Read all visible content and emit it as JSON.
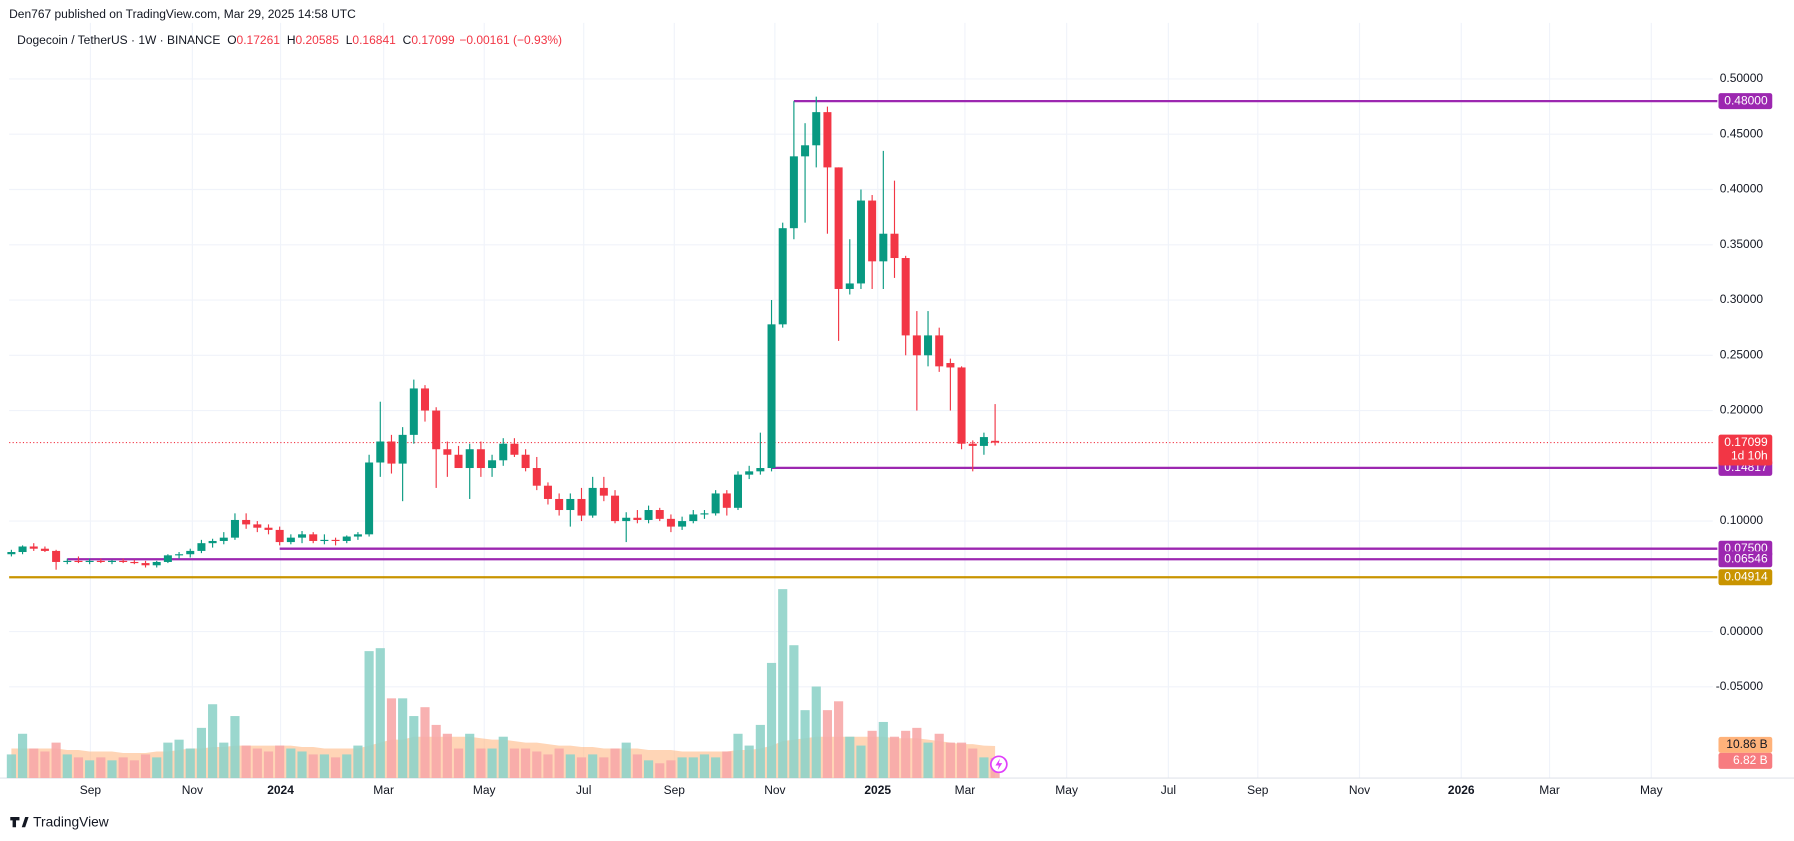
{
  "header": {
    "published": "Den767 published on TradingView.com, Mar 29, 2025 14:58 UTC",
    "brand": "TradingView"
  },
  "chart_data": {
    "type": "candlestick",
    "symbol": "Dogecoin / TetherUS · 1W · BINANCE",
    "legend_keys": [
      "O",
      "H",
      "L",
      "C"
    ],
    "change": "−0.00161 (−0.93%)",
    "up_color": "#089981",
    "down_color": "#f23645",
    "x": [
      0,
      1,
      2,
      3,
      4,
      5,
      6,
      7,
      8,
      9,
      10,
      11,
      12,
      13,
      14,
      15,
      16,
      17,
      18,
      19,
      20,
      21,
      22,
      23,
      24,
      25,
      26,
      27,
      28,
      29,
      30,
      31,
      32,
      33,
      34,
      35,
      36,
      37,
      38,
      39,
      40,
      41,
      42,
      43,
      44,
      45,
      46,
      47,
      48,
      49,
      50,
      51,
      52,
      53,
      54,
      55,
      56,
      57,
      58,
      59,
      60,
      61,
      62,
      63,
      64,
      65,
      66,
      67,
      68,
      69,
      70,
      71,
      72,
      73,
      74,
      75,
      76,
      77,
      78,
      79,
      80,
      81,
      82,
      83,
      84,
      85,
      86,
      87,
      88
    ],
    "open": [
      0.07,
      0.072,
      0.077,
      0.075,
      0.073,
      0.063,
      0.064,
      0.063,
      0.064,
      0.063,
      0.064,
      0.063,
      0.062,
      0.06,
      0.063,
      0.069,
      0.07,
      0.073,
      0.08,
      0.082,
      0.085,
      0.101,
      0.097,
      0.094,
      0.092,
      0.081,
      0.085,
      0.088,
      0.082,
      0.083,
      0.082,
      0.086,
      0.088,
      0.153,
      0.172,
      0.152,
      0.178,
      0.22,
      0.2,
      0.165,
      0.16,
      0.148,
      0.165,
      0.148,
      0.155,
      0.17,
      0.16,
      0.148,
      0.132,
      0.12,
      0.11,
      0.12,
      0.105,
      0.13,
      0.123,
      0.1,
      0.103,
      0.101,
      0.11,
      0.102,
      0.095,
      0.1,
      0.106,
      0.107,
      0.125,
      0.112,
      0.142,
      0.145,
      0.148,
      0.278,
      0.365,
      0.43,
      0.44,
      0.47,
      0.42,
      0.31,
      0.315,
      0.39,
      0.335,
      0.36,
      0.338,
      0.268,
      0.25,
      0.268,
      0.243,
      0.239,
      0.17,
      0.168,
      0.17261
    ],
    "high": [
      0.074,
      0.078,
      0.08,
      0.077,
      0.074,
      0.066,
      0.068,
      0.066,
      0.066,
      0.065,
      0.066,
      0.065,
      0.064,
      0.064,
      0.07,
      0.072,
      0.075,
      0.083,
      0.084,
      0.09,
      0.107,
      0.107,
      0.1,
      0.097,
      0.095,
      0.088,
      0.091,
      0.09,
      0.088,
      0.085,
      0.087,
      0.09,
      0.16,
      0.208,
      0.178,
      0.185,
      0.228,
      0.223,
      0.203,
      0.172,
      0.168,
      0.17,
      0.172,
      0.16,
      0.175,
      0.175,
      0.165,
      0.158,
      0.135,
      0.125,
      0.125,
      0.13,
      0.14,
      0.14,
      0.128,
      0.108,
      0.11,
      0.114,
      0.112,
      0.106,
      0.104,
      0.11,
      0.11,
      0.128,
      0.128,
      0.145,
      0.15,
      0.18,
      0.3,
      0.37,
      0.48,
      0.46,
      0.484,
      0.475,
      0.42,
      0.355,
      0.4,
      0.395,
      0.435,
      0.408,
      0.34,
      0.29,
      0.29,
      0.275,
      0.247,
      0.24,
      0.173,
      0.18,
      0.20585
    ],
    "low": [
      0.068,
      0.07,
      0.073,
      0.072,
      0.056,
      0.061,
      0.062,
      0.061,
      0.062,
      0.061,
      0.062,
      0.061,
      0.058,
      0.058,
      0.062,
      0.066,
      0.067,
      0.071,
      0.076,
      0.079,
      0.083,
      0.093,
      0.09,
      0.088,
      0.078,
      0.079,
      0.08,
      0.08,
      0.079,
      0.078,
      0.08,
      0.083,
      0.086,
      0.14,
      0.143,
      0.118,
      0.17,
      0.19,
      0.13,
      0.14,
      0.148,
      0.12,
      0.14,
      0.14,
      0.15,
      0.158,
      0.145,
      0.128,
      0.115,
      0.105,
      0.095,
      0.1,
      0.103,
      0.118,
      0.098,
      0.081,
      0.098,
      0.098,
      0.1,
      0.09,
      0.092,
      0.098,
      0.102,
      0.105,
      0.105,
      0.11,
      0.138,
      0.142,
      0.145,
      0.275,
      0.355,
      0.37,
      0.42,
      0.36,
      0.263,
      0.305,
      0.31,
      0.31,
      0.31,
      0.32,
      0.25,
      0.2,
      0.24,
      0.235,
      0.2,
      0.165,
      0.145,
      0.16,
      0.16841
    ],
    "close": [
      0.072,
      0.077,
      0.075,
      0.073,
      0.063,
      0.064,
      0.063,
      0.064,
      0.063,
      0.064,
      0.063,
      0.062,
      0.06,
      0.063,
      0.069,
      0.07,
      0.073,
      0.08,
      0.082,
      0.085,
      0.101,
      0.097,
      0.094,
      0.092,
      0.081,
      0.085,
      0.088,
      0.082,
      0.083,
      0.082,
      0.086,
      0.088,
      0.153,
      0.172,
      0.152,
      0.178,
      0.22,
      0.2,
      0.165,
      0.16,
      0.148,
      0.165,
      0.148,
      0.155,
      0.17,
      0.16,
      0.148,
      0.132,
      0.12,
      0.11,
      0.12,
      0.105,
      0.13,
      0.123,
      0.1,
      0.103,
      0.101,
      0.11,
      0.102,
      0.095,
      0.1,
      0.106,
      0.107,
      0.125,
      0.112,
      0.142,
      0.145,
      0.148,
      0.278,
      0.365,
      0.43,
      0.44,
      0.47,
      0.42,
      0.31,
      0.315,
      0.39,
      0.335,
      0.36,
      0.338,
      0.268,
      0.25,
      0.268,
      0.24,
      0.239,
      0.17,
      0.168,
      0.176,
      0.17099
    ],
    "volume": {
      "values": [
        8,
        15,
        10,
        9,
        12,
        8,
        7,
        6,
        7,
        6,
        7,
        6,
        8,
        7,
        12,
        13,
        10,
        17,
        25,
        12,
        21,
        11,
        10,
        9,
        11,
        10,
        9,
        8,
        8,
        7,
        8,
        11,
        43,
        44,
        27,
        27,
        21,
        24,
        18,
        15,
        10,
        15,
        10,
        10,
        14,
        10,
        10,
        9,
        8,
        10,
        8,
        7,
        8,
        7,
        10,
        12,
        8,
        6,
        5,
        6,
        7,
        7,
        8,
        7,
        9,
        15,
        11,
        18,
        39,
        64,
        45,
        23,
        31,
        23,
        26,
        14,
        11,
        16,
        19,
        14,
        16,
        17,
        12,
        15,
        12,
        12,
        10,
        7,
        6.82
      ],
      "last_label": "6.82 B",
      "up_color": "#8fd3c9",
      "down_color": "#f7a9a8",
      "label_color": "#f77c80"
    },
    "volume_ma": {
      "values": [
        10,
        10,
        10,
        10,
        10,
        9.5,
        9.5,
        9,
        9,
        9,
        8.5,
        8.5,
        8.5,
        9,
        9,
        9.5,
        10,
        10,
        10.5,
        10.5,
        11,
        11,
        11,
        11,
        11,
        11,
        10.5,
        10.5,
        10,
        10,
        10,
        10,
        11,
        12,
        13,
        13,
        14,
        14,
        14,
        14,
        14,
        14,
        13.5,
        13,
        13,
        12.5,
        12,
        12,
        11.5,
        11,
        11,
        10.5,
        10.5,
        10,
        10,
        10,
        10,
        9.5,
        9.5,
        9.5,
        9,
        9,
        9,
        9,
        9,
        9.5,
        9.5,
        10,
        11,
        12.5,
        13,
        13.5,
        14,
        14,
        14,
        14,
        14,
        14,
        14,
        13.5,
        13.5,
        13.5,
        13,
        12.5,
        12,
        11.5,
        11.5,
        11,
        10.86
      ],
      "last_label": "10.86 B",
      "color": "#ffb27a"
    },
    "levels": [
      {
        "value": 0.48,
        "label": "0.48000",
        "x_start": 70,
        "color": "#9c27b0"
      },
      {
        "value": 0.14817,
        "label": "0.14817",
        "x_start": 68,
        "color": "#9c27b0"
      },
      {
        "value": 0.075,
        "label": "0.07500",
        "x_start": 24,
        "color": "#9c27b0"
      },
      {
        "value": 0.06546,
        "label": "0.06546",
        "x_start": 5,
        "color": "#9c27b0"
      },
      {
        "value": 0.04914,
        "label": "0.04914",
        "x_start": -0.2,
        "color": "#c99400"
      }
    ],
    "last_price": {
      "value": 0.17099,
      "label": "0.17099",
      "countdown": "1d 10h",
      "color": "#f23645"
    },
    "xlim": [
      -0.2,
      152.2
    ],
    "xticks": [
      {
        "value": 7.07,
        "label": "Sep"
      },
      {
        "value": 16.19,
        "label": "Nov"
      },
      {
        "value": 24.08,
        "label": "2024"
      },
      {
        "value": 33.3,
        "label": "Mar"
      },
      {
        "value": 42.3,
        "label": "May"
      },
      {
        "value": 51.2,
        "label": "Jul"
      },
      {
        "value": 59.3,
        "label": "Sep"
      },
      {
        "value": 68.3,
        "label": "Nov"
      },
      {
        "value": 77.5,
        "label": "2025"
      },
      {
        "value": 85.3,
        "label": "Mar"
      },
      {
        "value": 94.4,
        "label": "May"
      },
      {
        "value": 103.5,
        "label": "Jul"
      },
      {
        "value": 111.5,
        "label": "Sep"
      },
      {
        "value": 120.6,
        "label": "Nov"
      },
      {
        "value": 129.7,
        "label": "2026"
      },
      {
        "value": 137.6,
        "label": "Mar"
      },
      {
        "value": 146.7,
        "label": "May"
      }
    ],
    "ylim": [
      -0.1325,
      0.5176
    ],
    "yticks": [
      {
        "value": 0.5,
        "label": "0.50000"
      },
      {
        "value": 0.45,
        "label": "0.45000"
      },
      {
        "value": 0.4,
        "label": "0.40000"
      },
      {
        "value": 0.35,
        "label": "0.35000"
      },
      {
        "value": 0.3,
        "label": "0.30000"
      },
      {
        "value": 0.25,
        "label": "0.25000"
      },
      {
        "value": 0.2,
        "label": "0.20000"
      },
      {
        "value": 0.1,
        "label": "0.10000"
      },
      {
        "value": 0,
        "label": "0.00000"
      },
      {
        "value": -0.05,
        "label": "-0.05000"
      }
    ],
    "grid": true
  }
}
